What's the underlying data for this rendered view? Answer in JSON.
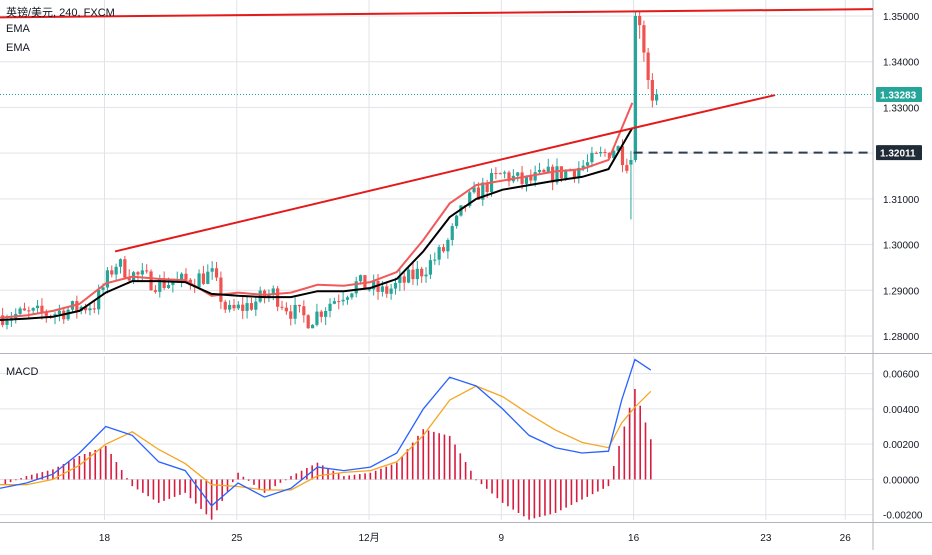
{
  "header": {
    "title": "英镑/美元, 240, FXCM",
    "indicator_1": "EMA",
    "indicator_2": "EMA"
  },
  "macd_label": "MACD",
  "price_tags": {
    "last": "1.33283",
    "level": "1.32011"
  },
  "colors": {
    "bull": "#26a69a",
    "bear": "#ef5350",
    "ema_fast": "#f05a5a",
    "ema_slow": "#000000",
    "trendline": "#e41a1a",
    "dashed": "#2b3e50",
    "macd": "#2962ff",
    "signal": "#f5a623",
    "hist": "#d81b3f",
    "grid": "#e1e3e8",
    "last_price": "#26a69a"
  },
  "chart_data": [
    {
      "type": "candlestick",
      "title": "英镑/美元, 240, FXCM",
      "ylim": [
        1.2765,
        1.3535
      ],
      "xlim": [
        0,
        33
      ],
      "y_ticks": [
        "1.35000",
        "1.34000",
        "1.33000",
        "1.32000",
        "1.31000",
        "1.30000",
        "1.29000",
        "1.28000"
      ],
      "y_tick_values": [
        1.35,
        1.34,
        1.33,
        1.32,
        1.31,
        1.3,
        1.29,
        1.28
      ],
      "x_ticks": [
        "18",
        "25",
        "12月",
        "9",
        "16",
        "23",
        "26"
      ],
      "x_tick_values": [
        3.95,
        8.95,
        13.95,
        18.95,
        23.95,
        28.95,
        31.95
      ],
      "grid": true,
      "trendlines": [
        {
          "from": [
            4.35,
            1.2985
          ],
          "to": [
            23.95,
            1.3255
          ]
        },
        {
          "from": [
            0,
            1.3497
          ],
          "to": [
            33,
            1.3515
          ]
        },
        {
          "from": [
            23.95,
            1.3255
          ],
          "to": [
            29.3,
            1.3327
          ]
        }
      ],
      "level_line": 1.32011,
      "last_price": 1.33283,
      "series": [
        {
          "name": "EMA",
          "x": [
            0,
            1,
            2,
            3,
            4,
            5,
            6,
            7,
            8,
            9,
            10,
            11,
            12,
            13,
            14,
            15,
            16,
            17,
            18,
            19,
            20,
            21,
            22,
            23,
            23.9
          ],
          "values": [
            1.284,
            1.2845,
            1.2855,
            1.287,
            1.2915,
            1.293,
            1.2925,
            1.2922,
            1.2888,
            1.2895,
            1.289,
            1.2895,
            1.2912,
            1.291,
            1.2918,
            1.294,
            1.301,
            1.309,
            1.313,
            1.314,
            1.315,
            1.316,
            1.3165,
            1.3185,
            1.331
          ]
        },
        {
          "name": "EMA",
          "x": [
            0,
            1,
            2,
            3,
            4,
            5,
            6,
            7,
            8,
            9,
            10,
            11,
            12,
            13,
            14,
            15,
            16,
            17,
            18,
            19,
            20,
            21,
            22,
            23,
            23.9
          ],
          "values": [
            1.2835,
            1.2838,
            1.2842,
            1.2855,
            1.2895,
            1.292,
            1.292,
            1.2918,
            1.2892,
            1.2888,
            1.2885,
            1.2885,
            1.2898,
            1.2898,
            1.2905,
            1.2925,
            1.2985,
            1.306,
            1.31,
            1.312,
            1.313,
            1.314,
            1.3148,
            1.3165,
            1.3255
          ]
        }
      ]
    },
    {
      "type": "line",
      "title": "MACD",
      "ylim": [
        -0.0023,
        0.007
      ],
      "y_ticks": [
        "0.00600",
        "0.00400",
        "0.00200",
        "0.00000",
        "-0.00200"
      ],
      "y_tick_values": [
        0.006,
        0.004,
        0.002,
        0.0,
        -0.002
      ],
      "x": [
        0,
        1,
        2,
        3,
        4,
        5,
        6,
        7,
        8,
        9,
        10,
        11,
        12,
        13,
        14,
        15,
        16,
        17,
        18,
        19,
        20,
        21,
        22,
        23,
        23.5,
        24,
        24.6
      ],
      "series": [
        {
          "name": "MACD",
          "values": [
            -0.0005,
            -0.0002,
            0.0003,
            0.0015,
            0.003,
            0.0025,
            0.001,
            0.0005,
            -0.0015,
            -0.0002,
            -0.001,
            -0.0005,
            0.0007,
            0.0005,
            0.0007,
            0.0015,
            0.004,
            0.0058,
            0.0053,
            0.004,
            0.0025,
            0.0018,
            0.0015,
            0.0016,
            0.0045,
            0.0068,
            0.0062
          ]
        },
        {
          "name": "Signal",
          "values": [
            -0.0003,
            -0.0003,
            0.0,
            0.0008,
            0.002,
            0.0027,
            0.0017,
            0.0009,
            -0.0003,
            -0.0004,
            -0.0006,
            -0.0006,
            0.0002,
            0.0004,
            0.0005,
            0.001,
            0.0025,
            0.0045,
            0.0053,
            0.0047,
            0.0037,
            0.0028,
            0.0021,
            0.0018,
            0.0032,
            0.0041,
            0.005
          ]
        }
      ]
    }
  ]
}
